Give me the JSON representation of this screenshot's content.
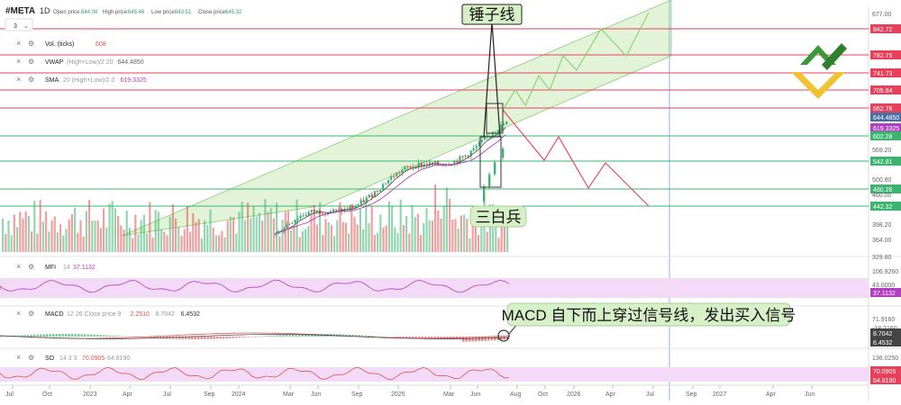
{
  "header": {
    "symbol": "#META",
    "interval": "1D",
    "open_label": "Open price:",
    "open_value": "644.08",
    "high_label": "High price:",
    "high_value": "645.46",
    "low_label": "Low price:",
    "low_value": "643.51",
    "close_label": "Close price:",
    "close_value": "645.32",
    "collapse_count": "3"
  },
  "indicators": [
    {
      "name": "Vol. (ticks)",
      "value": "608",
      "color": "#e05252"
    },
    {
      "name": "VWAP",
      "params": "(High+Low)/2 20",
      "value": "644.4850",
      "color": "#666666"
    },
    {
      "name": "SMA",
      "params": "20 (High+Low)/2 0",
      "value": "619.3325",
      "color": "#b040c0"
    }
  ],
  "price_axis": {
    "ticks": [
      "677.00",
      "569.20",
      "500.80",
      "460.00",
      "398.20",
      "364.00",
      "329.80"
    ],
    "levels": [
      {
        "label": "842.72",
        "color": "#e8405a"
      },
      {
        "label": "782.75",
        "color": "#e8405a"
      },
      {
        "label": "741.73",
        "color": "#e8405a"
      },
      {
        "label": "705.84",
        "color": "#e8405a"
      },
      {
        "label": "662.78",
        "color": "#e8405a"
      },
      {
        "label": "644.4850",
        "color": "#4a6fa5"
      },
      {
        "label": "619.3325",
        "color": "#b040c0"
      },
      {
        "label": "602.28",
        "color": "#3cb371"
      },
      {
        "label": "542.81",
        "color": "#3cb371"
      },
      {
        "label": "480.26",
        "color": "#3cb371"
      },
      {
        "label": "442.32",
        "color": "#3cb371"
      }
    ]
  },
  "annotations": {
    "hammer": "锤子线",
    "three_soldiers": "三白兵",
    "macd_note": "MACD 自下而上穿过信号线，发出买入信号"
  },
  "mfi": {
    "name": "MFI",
    "params": "14",
    "value": "37.1132",
    "axis_ticks": [
      "106.9260",
      "43.0000"
    ],
    "badge": "37.1132"
  },
  "macd": {
    "name": "MACD",
    "params": "12 26 Close price 9",
    "v1": "2.2510",
    "v2": "8.7042",
    "v3": "6.4532",
    "axis_ticks": [
      "71.9160",
      "-18.2160"
    ],
    "badge1": "8.7042",
    "badge2": "6.4532"
  },
  "so": {
    "name": "SO",
    "params": "14 3 3",
    "v1": "70.0905",
    "v2": "64.8190",
    "axis_ticks": [
      "136.0250",
      "-34.4750"
    ],
    "badge1": "70.0905",
    "badge2": "64.8190"
  },
  "time_axis": [
    "Jul",
    "Oct",
    "2023",
    "Apr",
    "Jul",
    "Sep",
    "2024",
    "Mar",
    "Jun",
    "Sep",
    "2025",
    "Mar",
    "Jun",
    "Aug",
    "Oct",
    "2026",
    "Apr",
    "Jul",
    "Sep",
    "2027",
    "Apr",
    "Jun"
  ],
  "colors": {
    "up": "#3cb371",
    "down": "#e05252",
    "channel": "#c8e6b8"
  },
  "chart_data": {
    "type": "candlestick",
    "title": "#META",
    "y_ticks": [
      677.0,
      569.2,
      500.8,
      460.0,
      398.2,
      364.0,
      329.8
    ],
    "resistance_levels": [
      842.72,
      782.75,
      741.73,
      705.84,
      662.78
    ],
    "support_levels": [
      602.28,
      542.81,
      480.26,
      442.32
    ],
    "vwap": 644.485,
    "sma": 619.3325,
    "last_ohlc": {
      "open": 644.08,
      "high": 645.46,
      "low": 643.51,
      "close": 645.32
    },
    "volume": 608,
    "x_labels": [
      "Jul",
      "Oct",
      "2023",
      "Apr",
      "Jul",
      "Sep",
      "2024",
      "Mar",
      "Jun",
      "Sep",
      "2025",
      "Mar",
      "Jun",
      "Aug",
      "Oct",
      "2026",
      "Apr",
      "Jul",
      "Sep",
      "2027",
      "Apr",
      "Jun"
    ],
    "indicators": {
      "MFI": 37.1132,
      "MACD": [
        2.251,
        8.7042,
        6.4532
      ],
      "SO": [
        70.0905,
        64.819
      ]
    }
  }
}
